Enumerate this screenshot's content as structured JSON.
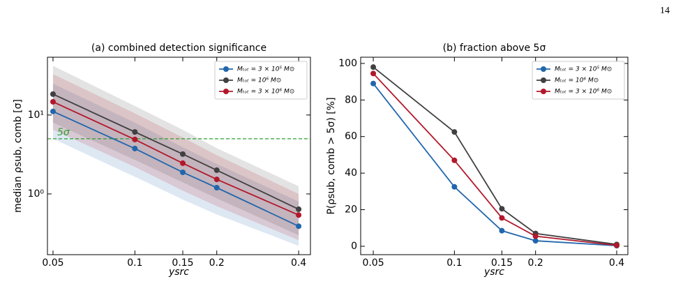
{
  "page_number": "14",
  "chart_data": [
    {
      "type": "line",
      "title": "(a) combined detection significance",
      "x_label": "ysrc",
      "y_label": "median ρsub, comb [σ]",
      "x": [
        0.05,
        0.1,
        0.15,
        0.2,
        0.4
      ],
      "xscale": "log",
      "yscale": "log",
      "xlim": [
        0.0477,
        0.442
      ],
      "ylim": [
        0.17,
        54
      ],
      "xticks": [
        0.05,
        0.1,
        0.15,
        0.2,
        0.4
      ],
      "yticks": [
        {
          "value": 1,
          "label": "10⁰"
        },
        {
          "value": 10,
          "label": "10¹"
        }
      ],
      "legend": "upper right",
      "hline": {
        "value": 5,
        "label": "5σ",
        "color": "#2ca02c"
      },
      "series": [
        {
          "name": "Mₜₒₜ = 3 × 10⁵ M⊙",
          "color": "#2166ac",
          "values": [
            11.1,
            3.76,
            1.88,
            1.2,
            0.39
          ],
          "lower": [
            5,
            1.65,
            0.85,
            0.55,
            0.22
          ],
          "upper": [
            25,
            8,
            3.9,
            2.4,
            0.8
          ]
        },
        {
          "name": "Mₜₒₜ = 10⁶ M⊙",
          "color": "#404040",
          "values": [
            18.4,
            6.1,
            3.2,
            2.0,
            0.64
          ],
          "lower": [
            8,
            2.7,
            1.4,
            0.88,
            0.3
          ],
          "upper": [
            42,
            13,
            6.5,
            3.8,
            1.25
          ]
        },
        {
          "name": "Mₜₒₜ = 3 × 10⁶ M⊙",
          "color": "#b2182b",
          "values": [
            14.7,
            4.9,
            2.45,
            1.53,
            0.54
          ],
          "lower": [
            6.5,
            2.2,
            1.1,
            0.7,
            0.26
          ],
          "upper": [
            33,
            10.5,
            5.2,
            3.1,
            1.0
          ]
        }
      ]
    },
    {
      "type": "line",
      "title": "(b) fraction above 5σ",
      "x_label": "ysrc",
      "y_label": "P(ρsub, comb > 5σ) [%]",
      "x": [
        0.05,
        0.1,
        0.15,
        0.2,
        0.4
      ],
      "xscale": "log",
      "yscale": "linear",
      "xlim": [
        0.0449,
        0.44
      ],
      "ylim": [
        -4.6,
        103.4
      ],
      "xticks": [
        0.05,
        0.1,
        0.15,
        0.2,
        0.4
      ],
      "yticks": [
        0,
        20,
        40,
        60,
        80,
        100
      ],
      "legend": "upper right",
      "series": [
        {
          "name": "Mₜₒₜ = 3 × 10⁵ M⊙",
          "color": "#2166ac",
          "values": [
            89,
            32.5,
            8.5,
            3,
            0.3
          ]
        },
        {
          "name": "Mₜₒₜ = 10⁶ M⊙",
          "color": "#404040",
          "values": [
            98,
            62.5,
            20.5,
            7,
            1
          ]
        },
        {
          "name": "Mₜₒₜ = 3 × 10⁶ M⊙",
          "color": "#b2182b",
          "values": [
            94.5,
            47,
            15.5,
            5.5,
            0.5
          ]
        }
      ]
    }
  ]
}
